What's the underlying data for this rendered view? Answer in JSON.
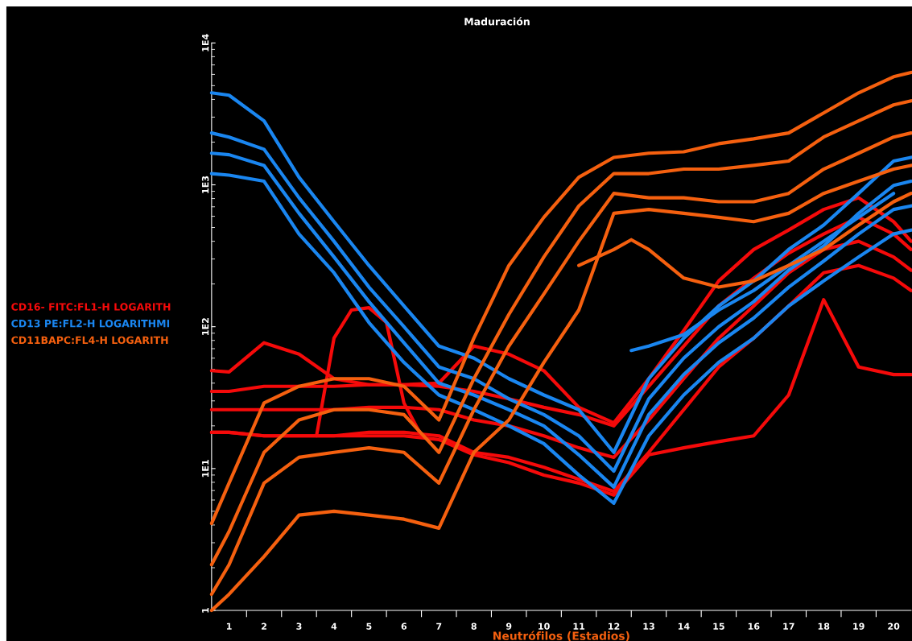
{
  "chart_data": {
    "type": "line",
    "title": "Maduración",
    "xlabel": "Neutrófilos (Estadios)",
    "x": [
      0.5,
      1,
      2,
      3,
      4,
      5,
      6,
      7,
      8,
      9,
      10,
      11,
      12,
      13,
      14,
      15,
      16,
      17,
      18,
      19,
      20,
      20.5
    ],
    "xlim": [
      0.5,
      20.5
    ],
    "xticks": [
      {
        "value": 1,
        "label": "1"
      },
      {
        "value": 2,
        "label": "2"
      },
      {
        "value": 3,
        "label": "3"
      },
      {
        "value": 4,
        "label": "4"
      },
      {
        "value": 5,
        "label": "5"
      },
      {
        "value": 6,
        "label": "6"
      },
      {
        "value": 7,
        "label": "7"
      },
      {
        "value": 8,
        "label": "8"
      },
      {
        "value": 9,
        "label": "9"
      },
      {
        "value": 10,
        "label": "10"
      },
      {
        "value": 11,
        "label": "11"
      },
      {
        "value": 12,
        "label": "12"
      },
      {
        "value": 13,
        "label": "13"
      },
      {
        "value": 14,
        "label": "14"
      },
      {
        "value": 15,
        "label": "15"
      },
      {
        "value": 16,
        "label": "16"
      },
      {
        "value": 17,
        "label": "17"
      },
      {
        "value": 18,
        "label": "18"
      },
      {
        "value": 19,
        "label": "19"
      },
      {
        "value": 20,
        "label": "20"
      },
      {
        "value": 1.5,
        "label": null
      },
      {
        "value": 2.5,
        "label": null
      },
      {
        "value": 3.5,
        "label": null
      },
      {
        "value": 4.5,
        "label": null
      },
      {
        "value": 5.5,
        "label": null
      },
      {
        "value": 6.5,
        "label": null
      },
      {
        "value": 7.5,
        "label": null
      },
      {
        "value": 8.5,
        "label": null
      },
      {
        "value": 9.5,
        "label": null
      },
      {
        "value": 10.5,
        "label": null
      },
      {
        "value": 11.5,
        "label": null
      },
      {
        "value": 12.5,
        "label": null
      },
      {
        "value": 13.5,
        "label": null
      },
      {
        "value": 14.5,
        "label": null
      },
      {
        "value": 15.5,
        "label": null
      },
      {
        "value": 16.5,
        "label": null
      },
      {
        "value": 17.5,
        "label": null
      },
      {
        "value": 18.5,
        "label": null
      },
      {
        "value": 19.5,
        "label": null
      }
    ],
    "log": "y",
    "ylim": [
      1,
      10000
    ],
    "yticks": [
      {
        "value": 1,
        "label": "1"
      },
      {
        "value": 10,
        "label": "1E1"
      },
      {
        "value": 100,
        "label": "1E2"
      },
      {
        "value": 1000,
        "label": "1E3"
      },
      {
        "value": 10000,
        "label": "1E4"
      }
    ],
    "grid": false,
    "legend": "left",
    "marker": "none",
    "line_style": "solid",
    "series": [
      {
        "name": "CD16- FITC:FL1-H LOGARITH",
        "color": "#f50a0a",
        "values": [
          49,
          48,
          77,
          64,
          43,
          39,
          39,
          40,
          73,
          64,
          49,
          27,
          21,
          43,
          94,
          210,
          350,
          480,
          670,
          810,
          550,
          400
        ]
      },
      {
        "color": "#f50a0a",
        "values": [
          35,
          35,
          38,
          38,
          38,
          39,
          39,
          38,
          35,
          31,
          27,
          24,
          20,
          38,
          73,
          140,
          220,
          330,
          450,
          590,
          450,
          350
        ]
      },
      {
        "color": "#f50a0a",
        "values": [
          26,
          26,
          26,
          26,
          26,
          27,
          27,
          26,
          22,
          20,
          17,
          14,
          12,
          22,
          43,
          83,
          140,
          240,
          350,
          400,
          310,
          250
        ]
      },
      {
        "color": "#f50a0a",
        "values": [
          18,
          18,
          17,
          17,
          17,
          18,
          18,
          17,
          13,
          12,
          10.2,
          8.4,
          6.9,
          13,
          26,
          52,
          83,
          140,
          240,
          270,
          220,
          180
        ]
      },
      {
        "color": "#f50a0a",
        "values": [
          18,
          18,
          17,
          17,
          17,
          17,
          17,
          16,
          12.5,
          11,
          9.0,
          7.9,
          6.5,
          12.5,
          14,
          15.5,
          17,
          33,
          155,
          52,
          46,
          46
        ]
      },
      {
        "color": "#f50a0a",
        "x": [
          3.5,
          4,
          4.5,
          5,
          5.5,
          6,
          6.5
        ],
        "values": [
          17,
          83,
          131,
          136,
          107,
          29,
          17
        ]
      },
      {
        "name": "CD13 PE:FL2-H LOGARITHMI",
        "color": "#1a86f0",
        "values": [
          4450,
          4280,
          2820,
          1130,
          550,
          270,
          140,
          73,
          60,
          43,
          33,
          26,
          13,
          43,
          83,
          140,
          210,
          350,
          520,
          870,
          1470,
          1560
        ]
      },
      {
        "color": "#1a86f0",
        "values": [
          2320,
          2170,
          1780,
          810,
          400,
          190,
          100,
          52,
          43,
          31,
          24,
          17,
          9.6,
          31,
          60,
          100,
          150,
          250,
          370,
          630,
          990,
          1060
        ]
      },
      {
        "color": "#1a86f0",
        "values": [
          1670,
          1630,
          1370,
          630,
          310,
          150,
          77,
          40,
          33,
          26,
          20,
          12.5,
          7.4,
          24,
          46,
          77,
          115,
          190,
          290,
          450,
          670,
          710
        ]
      },
      {
        "color": "#1a86f0",
        "values": [
          1200,
          1170,
          1060,
          450,
          240,
          107,
          56,
          33,
          26,
          20,
          15,
          9.0,
          5.7,
          17,
          33,
          56,
          83,
          140,
          210,
          310,
          450,
          480
        ]
      },
      {
        "color": "#1a86f0",
        "x": [
          12.5,
          13,
          14,
          15,
          16,
          17,
          18,
          19,
          20
        ],
        "values": [
          68,
          73,
          88,
          131,
          180,
          270,
          400,
          590,
          870
        ]
      },
      {
        "name": "CD11BAPC:FL4-H LOGARITH",
        "color": "#f5600f",
        "values": [
          4.1,
          7.9,
          29,
          38,
          43,
          43,
          38,
          22,
          83,
          270,
          590,
          1130,
          1560,
          1670,
          1710,
          1950,
          2110,
          2320,
          3210,
          4450,
          5780,
          6200
        ]
      },
      {
        "color": "#f5600f",
        "values": [
          2.1,
          3.6,
          13,
          22,
          26,
          26,
          24,
          13,
          43,
          122,
          310,
          710,
          1200,
          1200,
          1290,
          1290,
          1370,
          1470,
          2170,
          2820,
          3660,
          3910
        ]
      },
      {
        "color": "#f5600f",
        "values": [
          1.3,
          2.1,
          7.9,
          12,
          13,
          14,
          13,
          7.9,
          26,
          73,
          170,
          400,
          870,
          810,
          810,
          760,
          760,
          870,
          1290,
          1670,
          2170,
          2320
        ]
      },
      {
        "color": "#f5600f",
        "values": [
          1,
          1.3,
          2.4,
          4.7,
          5.0,
          4.7,
          4.4,
          3.8,
          13,
          22,
          56,
          131,
          630,
          670,
          630,
          590,
          550,
          630,
          870,
          1060,
          1290,
          1370
        ]
      },
      {
        "color": "#f5600f",
        "x": [
          11,
          12,
          12.5,
          13,
          14,
          15,
          16,
          17,
          18,
          19,
          20,
          20.5
        ],
        "values": [
          270,
          350,
          410,
          350,
          220,
          190,
          210,
          270,
          350,
          520,
          760,
          870
        ]
      }
    ]
  }
}
